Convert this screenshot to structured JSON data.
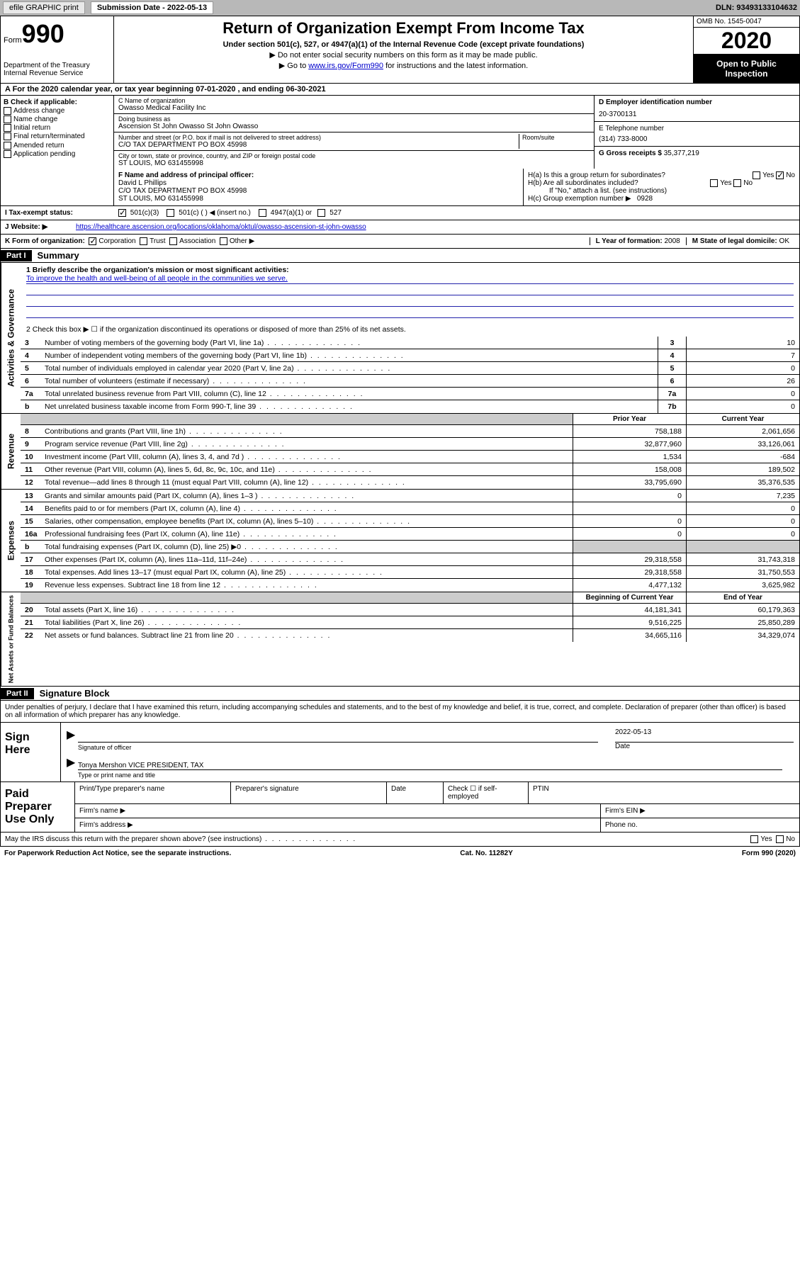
{
  "topbar": {
    "efile": "efile GRAPHIC print",
    "subdate_lbl": "Submission Date - 2022-05-13",
    "dln": "DLN: 93493133104632"
  },
  "header": {
    "form_word": "Form",
    "form_num": "990",
    "dept": "Department of the Treasury\nInternal Revenue Service",
    "title": "Return of Organization Exempt From Income Tax",
    "subtitle": "Under section 501(c), 527, or 4947(a)(1) of the Internal Revenue Code (except private foundations)",
    "note1": "▶ Do not enter social security numbers on this form as it may be made public.",
    "note2_pre": "▶ Go to ",
    "note2_link": "www.irs.gov/Form990",
    "note2_post": " for instructions and the latest information.",
    "omb": "OMB No. 1545-0047",
    "year": "2020",
    "open": "Open to Public Inspection"
  },
  "section_a": "A For the 2020 calendar year, or tax year beginning 07-01-2020     , and ending 06-30-2021",
  "col_b": {
    "hdr": "B Check if applicable:",
    "items": [
      "Address change",
      "Name change",
      "Initial return",
      "Final return/terminated",
      "Amended return",
      "Application pending"
    ]
  },
  "col_c": {
    "name_lbl": "C Name of organization",
    "name": "Owasso Medical Facility Inc",
    "dba_lbl": "Doing business as",
    "dba": "Ascension St John Owasso St John Owasso",
    "addr_lbl": "Number and street (or P.O. box if mail is not delivered to street address)",
    "room_lbl": "Room/suite",
    "addr": "C/O TAX DEPARTMENT PO BOX 45998",
    "city_lbl": "City or town, state or province, country, and ZIP or foreign postal code",
    "city": "ST LOUIS, MO  631455998"
  },
  "col_d": {
    "ein_lbl": "D Employer identification number",
    "ein": "20-3700131",
    "phone_lbl": "E Telephone number",
    "phone": "(314) 733-8000",
    "gross_lbl": "G Gross receipts $",
    "gross": "35,377,219"
  },
  "row_f": {
    "lbl": "F Name and address of principal officer:",
    "name": "David L Phillips",
    "addr1": "C/O TAX DEPARTMENT PO BOX 45998",
    "addr2": "ST LOUIS, MO  631455998"
  },
  "row_h": {
    "ha": "H(a)  Is this a group return for subordinates?",
    "hb": "H(b)  Are all subordinates included?",
    "hb_note": "If \"No,\" attach a list. (see instructions)",
    "hc": "H(c)  Group exemption number ▶",
    "hc_val": "0928"
  },
  "row_i": {
    "lbl": "I    Tax-exempt status:",
    "opts": [
      "501(c)(3)",
      "501(c) (  ) ◀ (insert no.)",
      "4947(a)(1) or",
      "527"
    ]
  },
  "row_j": {
    "lbl": "J    Website: ▶",
    "url": "https://healthcare.ascension.org/locations/oklahoma/oktul/owasso-ascension-st-john-owasso"
  },
  "row_k": {
    "lbl": "K Form of organization:",
    "opts": [
      "Corporation",
      "Trust",
      "Association",
      "Other ▶"
    ],
    "l_lbl": "L Year of formation:",
    "l_val": "2008",
    "m_lbl": "M State of legal domicile:",
    "m_val": "OK"
  },
  "parts": {
    "p1": "Part I",
    "p1_title": "Summary",
    "p2": "Part II",
    "p2_title": "Signature Block"
  },
  "summary": {
    "q1_lbl": "1  Briefly describe the organization's mission or most significant activities:",
    "q1_text": "To improve the health and well-being of all people in the communities we serve.",
    "q2": "2    Check this box ▶ ☐  if the organization discontinued its operations or disposed of more than 25% of its net assets.",
    "lines_gov": [
      {
        "n": "3",
        "d": "Number of voting members of the governing body (Part VI, line 1a)",
        "box": "3",
        "v": "10"
      },
      {
        "n": "4",
        "d": "Number of independent voting members of the governing body (Part VI, line 1b)",
        "box": "4",
        "v": "7"
      },
      {
        "n": "5",
        "d": "Total number of individuals employed in calendar year 2020 (Part V, line 2a)",
        "box": "5",
        "v": "0"
      },
      {
        "n": "6",
        "d": "Total number of volunteers (estimate if necessary)",
        "box": "6",
        "v": "26"
      },
      {
        "n": "7a",
        "d": "Total unrelated business revenue from Part VIII, column (C), line 12",
        "box": "7a",
        "v": "0"
      },
      {
        "n": "b",
        "d": "Net unrelated business taxable income from Form 990-T, line 39",
        "box": "7b",
        "v": "0"
      }
    ],
    "hdr_prior": "Prior Year",
    "hdr_current": "Current Year",
    "lines_rev": [
      {
        "n": "8",
        "d": "Contributions and grants (Part VIII, line 1h)",
        "p": "758,188",
        "c": "2,061,656"
      },
      {
        "n": "9",
        "d": "Program service revenue (Part VIII, line 2g)",
        "p": "32,877,960",
        "c": "33,126,061"
      },
      {
        "n": "10",
        "d": "Investment income (Part VIII, column (A), lines 3, 4, and 7d )",
        "p": "1,534",
        "c": "-684"
      },
      {
        "n": "11",
        "d": "Other revenue (Part VIII, column (A), lines 5, 6d, 8c, 9c, 10c, and 11e)",
        "p": "158,008",
        "c": "189,502"
      },
      {
        "n": "12",
        "d": "Total revenue—add lines 8 through 11 (must equal Part VIII, column (A), line 12)",
        "p": "33,795,690",
        "c": "35,376,535"
      }
    ],
    "lines_exp": [
      {
        "n": "13",
        "d": "Grants and similar amounts paid (Part IX, column (A), lines 1–3 )",
        "p": "0",
        "c": "7,235"
      },
      {
        "n": "14",
        "d": "Benefits paid to or for members (Part IX, column (A), line 4)",
        "p": "",
        "c": "0"
      },
      {
        "n": "15",
        "d": "Salaries, other compensation, employee benefits (Part IX, column (A), lines 5–10)",
        "p": "0",
        "c": "0"
      },
      {
        "n": "16a",
        "d": "Professional fundraising fees (Part IX, column (A), line 11e)",
        "p": "0",
        "c": "0"
      },
      {
        "n": "b",
        "d": "Total fundraising expenses (Part IX, column (D), line 25) ▶0",
        "p": "",
        "c": "",
        "grey": true
      },
      {
        "n": "17",
        "d": "Other expenses (Part IX, column (A), lines 11a–11d, 11f–24e)",
        "p": "29,318,558",
        "c": "31,743,318"
      },
      {
        "n": "18",
        "d": "Total expenses. Add lines 13–17 (must equal Part IX, column (A), line 25)",
        "p": "29,318,558",
        "c": "31,750,553"
      },
      {
        "n": "19",
        "d": "Revenue less expenses. Subtract line 18 from line 12",
        "p": "4,477,132",
        "c": "3,625,982"
      }
    ],
    "hdr_boy": "Beginning of Current Year",
    "hdr_eoy": "End of Year",
    "lines_net": [
      {
        "n": "20",
        "d": "Total assets (Part X, line 16)",
        "p": "44,181,341",
        "c": "60,179,363"
      },
      {
        "n": "21",
        "d": "Total liabilities (Part X, line 26)",
        "p": "9,516,225",
        "c": "25,850,289"
      },
      {
        "n": "22",
        "d": "Net assets or fund balances. Subtract line 21 from line 20",
        "p": "34,665,116",
        "c": "34,329,074"
      }
    ],
    "vtabs": {
      "gov": "Activities & Governance",
      "rev": "Revenue",
      "exp": "Expenses",
      "net": "Net Assets or Fund Balances"
    }
  },
  "sig": {
    "penalty": "Under penalties of perjury, I declare that I have examined this return, including accompanying schedules and statements, and to the best of my knowledge and belief, it is true, correct, and complete. Declaration of preparer (other than officer) is based on all information of which preparer has any knowledge.",
    "sign_here": "Sign Here",
    "sig_officer": "Signature of officer",
    "date_lbl": "Date",
    "date_val": "2022-05-13",
    "name_title": "Tonya Mershon VICE PRESIDENT, TAX",
    "type_name": "Type or print name and title",
    "paid": "Paid Preparer Use Only",
    "print_name": "Print/Type preparer's name",
    "prep_sig": "Preparer's signature",
    "check_self": "Check ☐ if self-employed",
    "ptin": "PTIN",
    "firm_name": "Firm's name    ▶",
    "firm_ein": "Firm's EIN ▶",
    "firm_addr": "Firm's address ▶",
    "phone": "Phone no.",
    "discuss": "May the IRS discuss this return with the preparer shown above? (see instructions)",
    "yes": "Yes",
    "no": "No"
  },
  "footer": {
    "paperwork": "For Paperwork Reduction Act Notice, see the separate instructions.",
    "cat": "Cat. No. 11282Y",
    "form": "Form 990 (2020)"
  }
}
